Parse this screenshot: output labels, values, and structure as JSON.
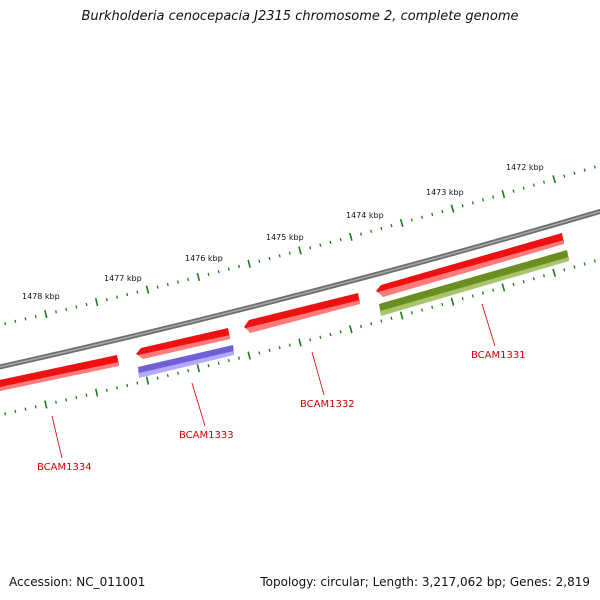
{
  "title": "Burkholderia cenocepacia J2315 chromosome 2, complete genome",
  "footer": {
    "accession": "Accession: NC_011001",
    "summary": "Topology: circular; Length: 3,217,062 bp; Genes: 2,819"
  },
  "colors": {
    "backbone": "#808080",
    "tick": "#1a7a1a",
    "cds_forward": "#ee1111",
    "cds_reverse_purple": "#7060d8",
    "cds_reverse_olive": "#6b8e23",
    "gene_label": "#cc0000",
    "leader": "#cc0000"
  },
  "scale_labels": [
    "1478 kbp",
    "1477 kbp",
    "1476 kbp",
    "1475 kbp",
    "1474 kbp",
    "1473 kbp",
    "1472 kbp"
  ],
  "genes": [
    {
      "label": "BCAM1334",
      "color_key": "cds_forward"
    },
    {
      "label": "BCAM1333",
      "color_key": "cds_reverse_purple"
    },
    {
      "label": "BCAM1332",
      "color_key": "cds_forward"
    },
    {
      "label": "BCAM1331",
      "color_key": "cds_reverse_olive"
    }
  ]
}
